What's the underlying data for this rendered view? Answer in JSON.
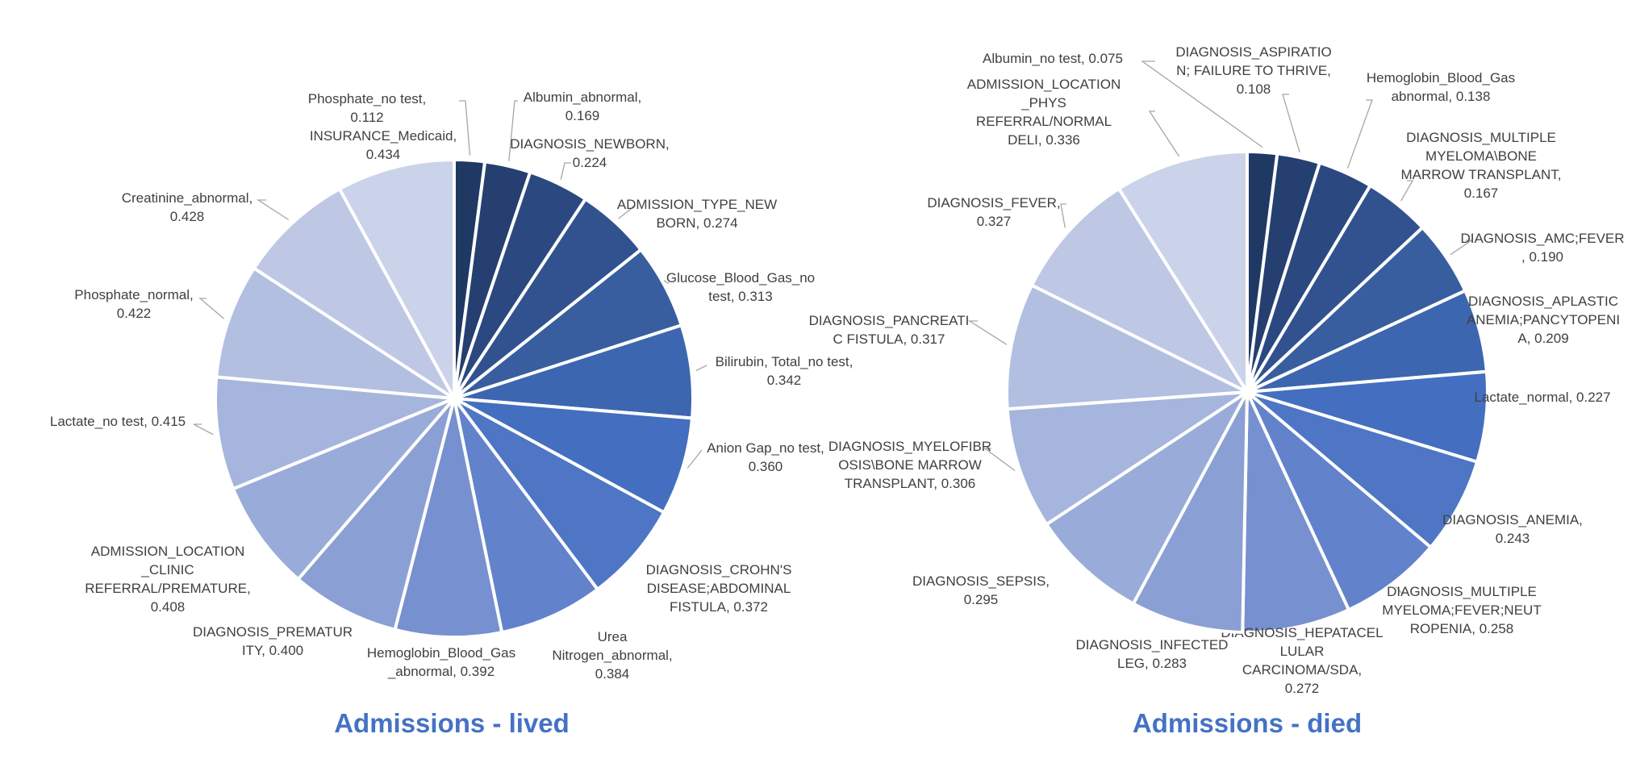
{
  "chart_data": [
    {
      "type": "pie",
      "title": "Admissions - lived",
      "slices": [
        {
          "label": "Phosphate_no test, 0.112",
          "value": 0.112,
          "color": "#203864"
        },
        {
          "label": "Albumin_abnormal, 0.169",
          "value": 0.169,
          "color": "#253f71"
        },
        {
          "label": "DIAGNOSIS_NEWBORN, 0.224",
          "value": 0.224,
          "color": "#2b4880"
        },
        {
          "label": "ADMISSION_TYPE_NEWBORN, 0.274",
          "value": 0.274,
          "color": "#32528f"
        },
        {
          "label": "Glucose_Blood_Gas_no test, 0.313",
          "value": 0.313,
          "color": "#385ea0"
        },
        {
          "label": "Bilirubin, Total_no test, 0.342",
          "value": 0.342,
          "color": "#3d66b0"
        },
        {
          "label": "Anion Gap_no test, 0.360",
          "value": 0.36,
          "color": "#446ec0"
        },
        {
          "label": "DIAGNOSIS_CROHN'S DISEASE;ABDOMINAL FISTULA, 0.372",
          "value": 0.372,
          "color": "#4e76c5"
        },
        {
          "label": "Urea Nitrogen_abnormal, 0.384",
          "value": 0.384,
          "color": "#6282cb"
        },
        {
          "label": "Hemoglobin_Blood_Gas_abnormal, 0.392",
          "value": 0.392,
          "color": "#7790cf"
        },
        {
          "label": "DIAGNOSIS_PREMATURITY, 0.400",
          "value": 0.4,
          "color": "#8a9fd4"
        },
        {
          "label": "ADMISSION_LOCATION_CLINIC REFERRAL/PREMATURE, 0.408",
          "value": 0.408,
          "color": "#99abd9"
        },
        {
          "label": "Lactate_no test, 0.415",
          "value": 0.415,
          "color": "#a6b5dd"
        },
        {
          "label": "Phosphate_normal, 0.422",
          "value": 0.422,
          "color": "#b2bfe1"
        },
        {
          "label": "Creatinine_abnormal, 0.428",
          "value": 0.428,
          "color": "#bec8e5"
        },
        {
          "label": "INSURANCE_Medicaid, 0.434",
          "value": 0.434,
          "color": "#cbd3ea"
        }
      ]
    },
    {
      "type": "pie",
      "title": "Admissions - died",
      "slices": [
        {
          "label": "Albumin_no test, 0.075",
          "value": 0.075,
          "color": "#203864"
        },
        {
          "label": "DIAGNOSIS_ASPIRATION; FAILURE TO THRIVE, 0.108",
          "value": 0.108,
          "color": "#253f71"
        },
        {
          "label": "Hemoglobin_Blood_Gas abnormal, 0.138",
          "value": 0.138,
          "color": "#2b4880"
        },
        {
          "label": "DIAGNOSIS_MULTIPLE MYELOMA\\BONE MARROW TRANSPLANT, 0.167",
          "value": 0.167,
          "color": "#32528f"
        },
        {
          "label": "DIAGNOSIS_AMC;FEVER, 0.190",
          "value": 0.19,
          "color": "#385ea0"
        },
        {
          "label": "DIAGNOSIS_APLASTIC ANEMIA;PANCYTOPENIA, 0.209",
          "value": 0.209,
          "color": "#3d66b0"
        },
        {
          "label": "Lactate_normal, 0.227",
          "value": 0.227,
          "color": "#446ec0"
        },
        {
          "label": "DIAGNOSIS_ANEMIA, 0.243",
          "value": 0.243,
          "color": "#4e76c5"
        },
        {
          "label": "DIAGNOSIS_MULTIPLE MYELOMA;FEVER;NEUTROPENIA, 0.258",
          "value": 0.258,
          "color": "#6282cb"
        },
        {
          "label": "DIAGNOSIS_HEPATACELLULAR CARCINOMA/SDA, 0.272",
          "value": 0.272,
          "color": "#7790cf"
        },
        {
          "label": "DIAGNOSIS_INFECTED LEG, 0.283",
          "value": 0.283,
          "color": "#8a9fd4"
        },
        {
          "label": "DIAGNOSIS_SEPSIS, 0.295",
          "value": 0.295,
          "color": "#99abd9"
        },
        {
          "label": "DIAGNOSIS_MYELOFIBROSIS\\BONE MARROW TRANSPLANT, 0.306",
          "value": 0.306,
          "color": "#a6b5dd"
        },
        {
          "label": "DIAGNOSIS_PANCREATIC FISTULA, 0.317",
          "value": 0.317,
          "color": "#b2bfe1"
        },
        {
          "label": "DIAGNOSIS_FEVER, 0.327",
          "value": 0.327,
          "color": "#bec8e5"
        },
        {
          "label": "ADMISSION_LOCATION_PHYS REFERRAL/NORMAL DELI, 0.336",
          "value": 0.336,
          "color": "#cbd3ea"
        }
      ]
    }
  ]
}
